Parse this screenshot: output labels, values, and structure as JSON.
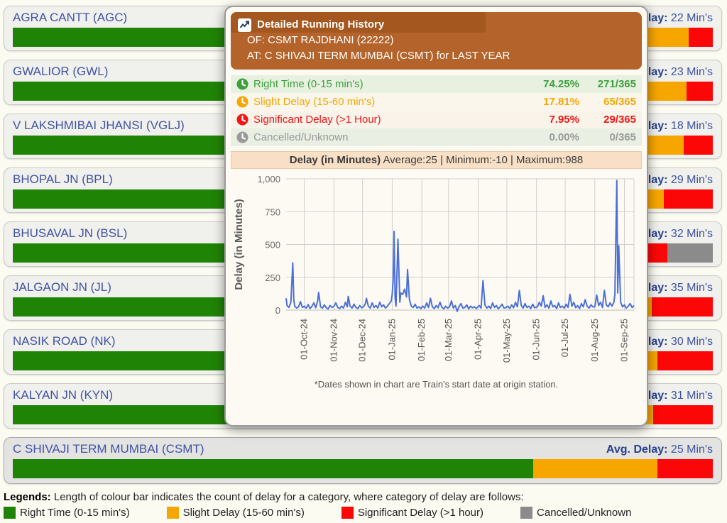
{
  "avg_delay_label": "Avg. Delay:",
  "colors": {
    "green": "#1f8405",
    "orange": "#f7a600",
    "red": "#fb0707",
    "gray": "#8b8b8b",
    "line": "#4a70d8",
    "header_brown": "#b4642b",
    "header_strip": "#a4571f",
    "stat_green": "#3da03d",
    "stat_orange": "#f7a600",
    "stat_red": "#f21515",
    "stat_gray": "#9a9a9a"
  },
  "stations": [
    {
      "name": "AGRA CANTT (AGC)",
      "avg_delay": "22 Min's",
      "segments": {
        "green": 78.0,
        "orange": 18.6,
        "red": 3.4,
        "gray": 0
      },
      "selected": false
    },
    {
      "name": "GWALIOR (GWL)",
      "avg_delay": "23 Min's",
      "segments": {
        "green": 77.0,
        "orange": 19.2,
        "red": 3.8,
        "gray": 0
      },
      "selected": false
    },
    {
      "name": "V LAKSHMIBAI JHANSI (VGLJ)",
      "avg_delay": "18 Min's",
      "segments": {
        "green": 80.0,
        "orange": 15.8,
        "red": 4.2,
        "gray": 0
      },
      "selected": false
    },
    {
      "name": "BHOPAL JN (BPL)",
      "avg_delay": "29 Min's",
      "segments": {
        "green": 72.0,
        "orange": 21.0,
        "red": 7.0,
        "gray": 0
      },
      "selected": false
    },
    {
      "name": "BHUSAVAL JN (BSL)",
      "avg_delay": "32 Min's",
      "segments": {
        "green": 70.0,
        "orange": 17.0,
        "red": 6.5,
        "gray": 6.5
      },
      "selected": false
    },
    {
      "name": "JALGAON JN (JL)",
      "avg_delay": "35 Min's",
      "segments": {
        "green": 67.0,
        "orange": 24.3,
        "red": 8.7,
        "gray": 0
      },
      "selected": false
    },
    {
      "name": "NASIK ROAD (NK)",
      "avg_delay": "30 Min's",
      "segments": {
        "green": 69.0,
        "orange": 23.1,
        "red": 7.9,
        "gray": 0
      },
      "selected": false
    },
    {
      "name": "KALYAN JN (KYN)",
      "avg_delay": "31 Min's",
      "segments": {
        "green": 68.0,
        "orange": 23.5,
        "red": 8.5,
        "gray": 0
      },
      "selected": false
    },
    {
      "name": "C SHIVAJI TERM MUMBAI (CSMT)",
      "avg_delay": "25 Min's",
      "segments": {
        "green": 74.3,
        "orange": 17.8,
        "red": 7.9,
        "gray": 0
      },
      "selected": true
    }
  ],
  "modal": {
    "title": "Detailed Running History",
    "of_line": "OF: CSMT RAJDHANI (22222)",
    "at_line": "AT: C SHIVAJI TERM MUMBAI (CSMT) for LAST YEAR",
    "stats": [
      {
        "label": "Right Time (0-15 min's)",
        "pct": "74.25%",
        "count": "271/365",
        "color_key": "stat_green"
      },
      {
        "label": "Slight Delay (15-60 min's)",
        "pct": "17.81%",
        "count": "65/365",
        "color_key": "stat_orange"
      },
      {
        "label": "Significant Delay (>1 Hour)",
        "pct": "7.95%",
        "count": "29/365",
        "color_key": "stat_red"
      },
      {
        "label": "Cancelled/Unknown",
        "pct": "0.00%",
        "count": "0/365",
        "color_key": "stat_gray"
      }
    ],
    "chart_title_bold": "Delay (in Minutes)",
    "chart_title_rest": " Average:25 | Minimum:-10 | Maximum:988",
    "footnote": "*Dates shown in chart are Train's start date at origin station."
  },
  "legend": {
    "title": "Legends:",
    "desc": " Length of colour bar indicates the count of delay for a category, where category of delay are follows:",
    "items": [
      {
        "label": "Right Time (0-15 min's)",
        "color_key": "green"
      },
      {
        "label": "Slight Delay (15-60 min's)",
        "color_key": "orange"
      },
      {
        "label": "Significant Delay (>1 hour)",
        "color_key": "red"
      },
      {
        "label": "Cancelled/Unknown",
        "color_key": "gray"
      }
    ]
  },
  "chart_data": {
    "type": "line",
    "title": "Delay (in Minutes) Average:25 | Minimum:-10 | Maximum:988",
    "ylabel": "Delay (in Minutes)",
    "ylim": [
      0,
      1000
    ],
    "yticks": [
      0,
      250,
      500,
      750,
      1000
    ],
    "ytick_labels": [
      "0",
      "250",
      "500",
      "750",
      "1,000"
    ],
    "x_tick_labels": [
      "01-Oct-24",
      "01-Nov-24",
      "01-Dec-24",
      "01-Jan-25",
      "01-Feb-25",
      "01-Mar-25",
      "01-Apr-25",
      "01-May-25",
      "01-Jun-25",
      "01-Jul-25",
      "01-Aug-25",
      "01-Sep-25"
    ],
    "x_tick_days": [
      19,
      50,
      80,
      111,
      142,
      170,
      201,
      231,
      262,
      292,
      323,
      354
    ],
    "total_days": 365,
    "grid": true,
    "legend_position": "none",
    "summary": {
      "average": 25,
      "minimum": -10,
      "maximum": 988
    },
    "series": [
      {
        "name": "Delay (in Minutes)",
        "points": [
          [
            0,
            90
          ],
          [
            1,
            35
          ],
          [
            3,
            20
          ],
          [
            5,
            60
          ],
          [
            7,
            360
          ],
          [
            8,
            80
          ],
          [
            9,
            30
          ],
          [
            11,
            15
          ],
          [
            13,
            25
          ],
          [
            15,
            65
          ],
          [
            17,
            20
          ],
          [
            19,
            30
          ],
          [
            21,
            15
          ],
          [
            23,
            42
          ],
          [
            25,
            12
          ],
          [
            27,
            28
          ],
          [
            29,
            55
          ],
          [
            31,
            18
          ],
          [
            33,
            70
          ],
          [
            34,
            135
          ],
          [
            36,
            25
          ],
          [
            38,
            15
          ],
          [
            40,
            40
          ],
          [
            42,
            18
          ],
          [
            44,
            10
          ],
          [
            46,
            35
          ],
          [
            48,
            20
          ],
          [
            50,
            28
          ],
          [
            52,
            55
          ],
          [
            54,
            20
          ],
          [
            56,
            12
          ],
          [
            58,
            30
          ],
          [
            60,
            15
          ],
          [
            62,
            60
          ],
          [
            64,
            25
          ],
          [
            65,
            105
          ],
          [
            67,
            30
          ],
          [
            69,
            15
          ],
          [
            71,
            45
          ],
          [
            73,
            20
          ],
          [
            75,
            12
          ],
          [
            77,
            35
          ],
          [
            79,
            18
          ],
          [
            81,
            25
          ],
          [
            83,
            50
          ],
          [
            84,
            90
          ],
          [
            86,
            30
          ],
          [
            88,
            15
          ],
          [
            90,
            55
          ],
          [
            92,
            20
          ],
          [
            94,
            35
          ],
          [
            96,
            15
          ],
          [
            98,
            60
          ],
          [
            100,
            25
          ],
          [
            102,
            40
          ],
          [
            104,
            15
          ],
          [
            106,
            30
          ],
          [
            108,
            50
          ],
          [
            110,
            70
          ],
          [
            111,
            120
          ],
          [
            112,
            230
          ],
          [
            113,
            600
          ],
          [
            114,
            90
          ],
          [
            115,
            30
          ],
          [
            117,
            540
          ],
          [
            119,
            60
          ],
          [
            120,
            130
          ],
          [
            122,
            120
          ],
          [
            124,
            160
          ],
          [
            126,
            100
          ],
          [
            127,
            310
          ],
          [
            129,
            80
          ],
          [
            131,
            30
          ],
          [
            133,
            20
          ],
          [
            135,
            45
          ],
          [
            137,
            15
          ],
          [
            139,
            25
          ],
          [
            141,
            12
          ],
          [
            143,
            30
          ],
          [
            145,
            15
          ],
          [
            147,
            55
          ],
          [
            149,
            20
          ],
          [
            151,
            90
          ],
          [
            153,
            25
          ],
          [
            155,
            12
          ],
          [
            157,
            35
          ],
          [
            159,
            18
          ],
          [
            161,
            60
          ],
          [
            163,
            22
          ],
          [
            165,
            10
          ],
          [
            167,
            30
          ],
          [
            169,
            15
          ],
          [
            171,
            25
          ],
          [
            173,
            70
          ],
          [
            175,
            15
          ],
          [
            177,
            35
          ],
          [
            179,
            -10
          ],
          [
            181,
            28
          ],
          [
            183,
            50
          ],
          [
            185,
            15
          ],
          [
            187,
            20
          ],
          [
            189,
            40
          ],
          [
            191,
            10
          ],
          [
            193,
            30
          ],
          [
            195,
            18
          ],
          [
            197,
            25
          ],
          [
            199,
            12
          ],
          [
            202,
            35
          ],
          [
            204,
            15
          ],
          [
            206,
            225
          ],
          [
            208,
            40
          ],
          [
            210,
            15
          ],
          [
            212,
            30
          ],
          [
            214,
            12
          ],
          [
            216,
            55
          ],
          [
            218,
            20
          ],
          [
            220,
            35
          ],
          [
            222,
            10
          ],
          [
            224,
            25
          ],
          [
            226,
            45
          ],
          [
            228,
            15
          ],
          [
            230,
            20
          ],
          [
            232,
            30
          ],
          [
            234,
            12
          ],
          [
            236,
            40
          ],
          [
            238,
            18
          ],
          [
            240,
            60
          ],
          [
            242,
            25
          ],
          [
            244,
            150
          ],
          [
            246,
            35
          ],
          [
            248,
            15
          ],
          [
            250,
            50
          ],
          [
            252,
            20
          ],
          [
            254,
            30
          ],
          [
            256,
            12
          ],
          [
            258,
            45
          ],
          [
            260,
            18
          ],
          [
            263,
            25
          ],
          [
            265,
            60
          ],
          [
            267,
            30
          ],
          [
            269,
            110
          ],
          [
            271,
            20
          ],
          [
            273,
            40
          ],
          [
            275,
            15
          ],
          [
            277,
            70
          ],
          [
            279,
            25
          ],
          [
            281,
            35
          ],
          [
            283,
            12
          ],
          [
            285,
            55
          ],
          [
            287,
            20
          ],
          [
            289,
            30
          ],
          [
            291,
            15
          ],
          [
            293,
            45
          ],
          [
            295,
            20
          ],
          [
            297,
            120
          ],
          [
            299,
            30
          ],
          [
            301,
            60
          ],
          [
            303,
            18
          ],
          [
            305,
            35
          ],
          [
            307,
            12
          ],
          [
            309,
            50
          ],
          [
            311,
            25
          ],
          [
            313,
            80
          ],
          [
            315,
            30
          ],
          [
            317,
            15
          ],
          [
            319,
            40
          ],
          [
            321,
            25
          ],
          [
            323,
            25
          ],
          [
            325,
            115
          ],
          [
            327,
            35
          ],
          [
            329,
            60
          ],
          [
            331,
            20
          ],
          [
            333,
            150
          ],
          [
            335,
            40
          ],
          [
            337,
            25
          ],
          [
            339,
            55
          ],
          [
            341,
            30
          ],
          [
            343,
            60
          ],
          [
            344,
            120
          ],
          [
            346,
            988
          ],
          [
            347,
            130
          ],
          [
            348,
            490
          ],
          [
            350,
            60
          ],
          [
            352,
            25
          ],
          [
            354,
            40
          ],
          [
            356,
            15
          ],
          [
            358,
            30
          ],
          [
            360,
            50
          ],
          [
            362,
            20
          ],
          [
            364,
            35
          ]
        ]
      }
    ]
  }
}
